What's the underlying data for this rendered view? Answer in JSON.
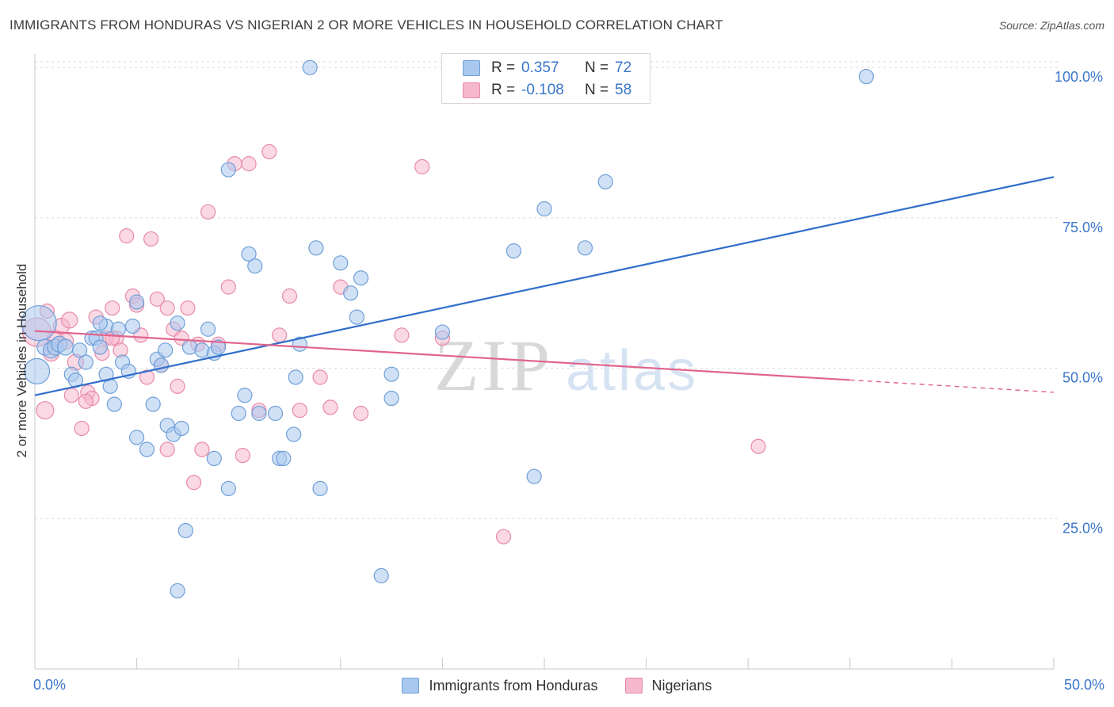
{
  "title": "IMMIGRANTS FROM HONDURAS VS NIGERIAN 2 OR MORE VEHICLES IN HOUSEHOLD CORRELATION CHART",
  "source": "Source: ZipAtlas.com",
  "watermark": {
    "zip": "ZIP",
    "atlas": "atlas"
  },
  "colors": {
    "blue_fill": "#a9c8ef",
    "blue_stroke": "#6f9fd8",
    "blue_line": "#2f6ecb",
    "pink_fill": "#f6b8cd",
    "pink_stroke": "#e88aa9",
    "pink_line": "#e0648d",
    "tick_label": "#3a76c9",
    "grid": "#d9d9d9"
  },
  "legend_top": [
    {
      "r_label": "R =",
      "r_value": "0.357",
      "n_label": "N =",
      "n_value": "72",
      "swatch": "#a9c8ef"
    },
    {
      "r_label": "R =",
      "r_value": "-0.108",
      "n_label": "N =",
      "n_value": "58",
      "swatch": "#f6b8cd"
    }
  ],
  "legend_bottom": [
    {
      "label": "Immigrants from Honduras",
      "swatch": "#a9c8ef"
    },
    {
      "label": "Nigerians",
      "swatch": "#f6b8cd"
    }
  ],
  "chart_data": {
    "type": "scatter",
    "title": "IMMIGRANTS FROM HONDURAS VS NIGERIAN 2 OR MORE VEHICLES IN HOUSEHOLD CORRELATION CHART",
    "xlabel": "",
    "ylabel": "2 or more Vehicles in Household",
    "xlim": [
      0,
      50
    ],
    "ylim": [
      0,
      102
    ],
    "x_tick_labels": [
      "0.0%",
      "50.0%"
    ],
    "y_ticks": [
      25,
      50,
      75,
      100
    ],
    "y_tick_labels": [
      "25.0%",
      "50.0%",
      "75.0%",
      "100.0%"
    ],
    "grid": true,
    "legend_position": "top-center",
    "series": [
      {
        "name": "Immigrants from Honduras",
        "color": "#a9c8ef",
        "trend": {
          "x": [
            0,
            50
          ],
          "y": [
            45.5,
            81.8
          ],
          "dashed_from": null
        },
        "points": [
          [
            0.2,
            57.5,
            22
          ],
          [
            0.1,
            49.5,
            16
          ],
          [
            0.5,
            53.5,
            10
          ],
          [
            0.8,
            53.0,
            10
          ],
          [
            1.0,
            53.5,
            10
          ],
          [
            1.2,
            54.0,
            10
          ],
          [
            1.5,
            53.5,
            10
          ],
          [
            1.8,
            49.0,
            9
          ],
          [
            2.0,
            48.0,
            9
          ],
          [
            2.5,
            51.0,
            9
          ],
          [
            2.8,
            55.0,
            9
          ],
          [
            3.0,
            55.0,
            9
          ],
          [
            3.2,
            53.5,
            9
          ],
          [
            3.5,
            57.0,
            9
          ],
          [
            3.2,
            57.5,
            9
          ],
          [
            3.5,
            49.0,
            9
          ],
          [
            3.7,
            47.0,
            9
          ],
          [
            3.9,
            44.0,
            9
          ],
          [
            4.1,
            56.5,
            9
          ],
          [
            4.3,
            51.0,
            9
          ],
          [
            4.6,
            49.5,
            9
          ],
          [
            4.8,
            57.0,
            9
          ],
          [
            5.0,
            61.0,
            9
          ],
          [
            5.0,
            38.5,
            9
          ],
          [
            5.5,
            36.5,
            9
          ],
          [
            5.8,
            44.0,
            9
          ],
          [
            6.0,
            51.5,
            9
          ],
          [
            6.2,
            50.5,
            9
          ],
          [
            6.4,
            53.0,
            9
          ],
          [
            6.5,
            40.5,
            9
          ],
          [
            6.8,
            39.0,
            9
          ],
          [
            7.0,
            57.5,
            9
          ],
          [
            7.2,
            40.0,
            9
          ],
          [
            7.4,
            23.0,
            9
          ],
          [
            7.6,
            53.5,
            9
          ],
          [
            8.2,
            53.0,
            9
          ],
          [
            8.5,
            56.5,
            9
          ],
          [
            8.8,
            52.5,
            9
          ],
          [
            9.0,
            53.5,
            9
          ],
          [
            8.8,
            35.0,
            9
          ],
          [
            9.5,
            30.0,
            9
          ],
          [
            9.5,
            83.0,
            9
          ],
          [
            10.0,
            42.5,
            9
          ],
          [
            10.3,
            45.5,
            9
          ],
          [
            10.5,
            69.0,
            9
          ],
          [
            10.8,
            67.0,
            9
          ],
          [
            11.0,
            42.5,
            9
          ],
          [
            11.8,
            42.5,
            9
          ],
          [
            12.0,
            35.0,
            9
          ],
          [
            12.2,
            35.0,
            9
          ],
          [
            12.7,
            39.0,
            9
          ],
          [
            12.8,
            48.5,
            9
          ],
          [
            13.0,
            54.0,
            9
          ],
          [
            13.5,
            100.0,
            9
          ],
          [
            13.8,
            70.0,
            9
          ],
          [
            14.0,
            30.0,
            9
          ],
          [
            15.0,
            67.5,
            9
          ],
          [
            15.5,
            62.5,
            9
          ],
          [
            15.8,
            58.5,
            9
          ],
          [
            16.0,
            65.0,
            9
          ],
          [
            17.0,
            15.5,
            9
          ],
          [
            17.5,
            49.0,
            9
          ],
          [
            17.5,
            45.0,
            9
          ],
          [
            20.0,
            56.0,
            9
          ],
          [
            23.5,
            69.5,
            9
          ],
          [
            24.5,
            32.0,
            9
          ],
          [
            25.0,
            76.5,
            9
          ],
          [
            27.0,
            70.0,
            9
          ],
          [
            28.0,
            81.0,
            9
          ],
          [
            7.0,
            13.0,
            9
          ],
          [
            40.8,
            98.5,
            9
          ],
          [
            2.2,
            53.0,
            9
          ]
        ]
      },
      {
        "name": "Nigerians",
        "color": "#f6b8cd",
        "trend": {
          "x": [
            0,
            50
          ],
          "y": [
            56.2,
            46.0
          ],
          "dashed_from": 40.0
        },
        "points": [
          [
            0.1,
            56.0,
            18
          ],
          [
            0.5,
            43.0,
            11
          ],
          [
            0.8,
            52.5,
            10
          ],
          [
            1.0,
            55.0,
            10
          ],
          [
            1.3,
            57.0,
            10
          ],
          [
            1.5,
            54.5,
            10
          ],
          [
            1.7,
            58.0,
            10
          ],
          [
            2.0,
            51.0,
            10
          ],
          [
            2.3,
            40.0,
            9
          ],
          [
            2.6,
            46.0,
            9
          ],
          [
            2.8,
            45.0,
            9
          ],
          [
            3.0,
            58.5,
            9
          ],
          [
            3.3,
            52.5,
            9
          ],
          [
            3.5,
            55.0,
            9
          ],
          [
            3.8,
            60.0,
            9
          ],
          [
            4.0,
            55.0,
            9
          ],
          [
            4.2,
            53.0,
            9
          ],
          [
            4.5,
            72.0,
            9
          ],
          [
            4.8,
            62.0,
            9
          ],
          [
            5.0,
            60.5,
            9
          ],
          [
            5.2,
            55.5,
            9
          ],
          [
            5.5,
            48.5,
            9
          ],
          [
            5.7,
            71.5,
            9
          ],
          [
            6.0,
            61.5,
            9
          ],
          [
            6.2,
            50.5,
            9
          ],
          [
            6.5,
            60.0,
            9
          ],
          [
            6.8,
            56.5,
            9
          ],
          [
            7.0,
            47.0,
            9
          ],
          [
            7.2,
            55.0,
            9
          ],
          [
            7.5,
            60.0,
            9
          ],
          [
            7.8,
            31.0,
            9
          ],
          [
            8.0,
            54.0,
            9
          ],
          [
            8.2,
            36.5,
            9
          ],
          [
            8.5,
            76.0,
            9
          ],
          [
            9.0,
            54.0,
            9
          ],
          [
            9.5,
            63.5,
            9
          ],
          [
            9.8,
            84.0,
            9
          ],
          [
            10.2,
            35.5,
            9
          ],
          [
            10.5,
            84.0,
            9
          ],
          [
            11.0,
            43.0,
            9
          ],
          [
            11.5,
            86.0,
            9
          ],
          [
            12.0,
            55.5,
            9
          ],
          [
            12.5,
            62.0,
            9
          ],
          [
            13.0,
            43.0,
            9
          ],
          [
            14.0,
            48.5,
            9
          ],
          [
            14.5,
            43.5,
            9
          ],
          [
            15.0,
            63.5,
            9
          ],
          [
            16.0,
            42.5,
            9
          ],
          [
            18.0,
            55.5,
            9
          ],
          [
            19.0,
            83.5,
            9
          ],
          [
            20.0,
            55.0,
            9
          ],
          [
            23.0,
            22.0,
            9
          ],
          [
            35.5,
            37.0,
            9
          ],
          [
            1.8,
            45.5,
            9
          ],
          [
            2.5,
            44.5,
            9
          ],
          [
            6.5,
            36.5,
            9
          ],
          [
            3.8,
            55.0,
            9
          ],
          [
            0.6,
            59.5,
            9
          ]
        ]
      }
    ]
  }
}
